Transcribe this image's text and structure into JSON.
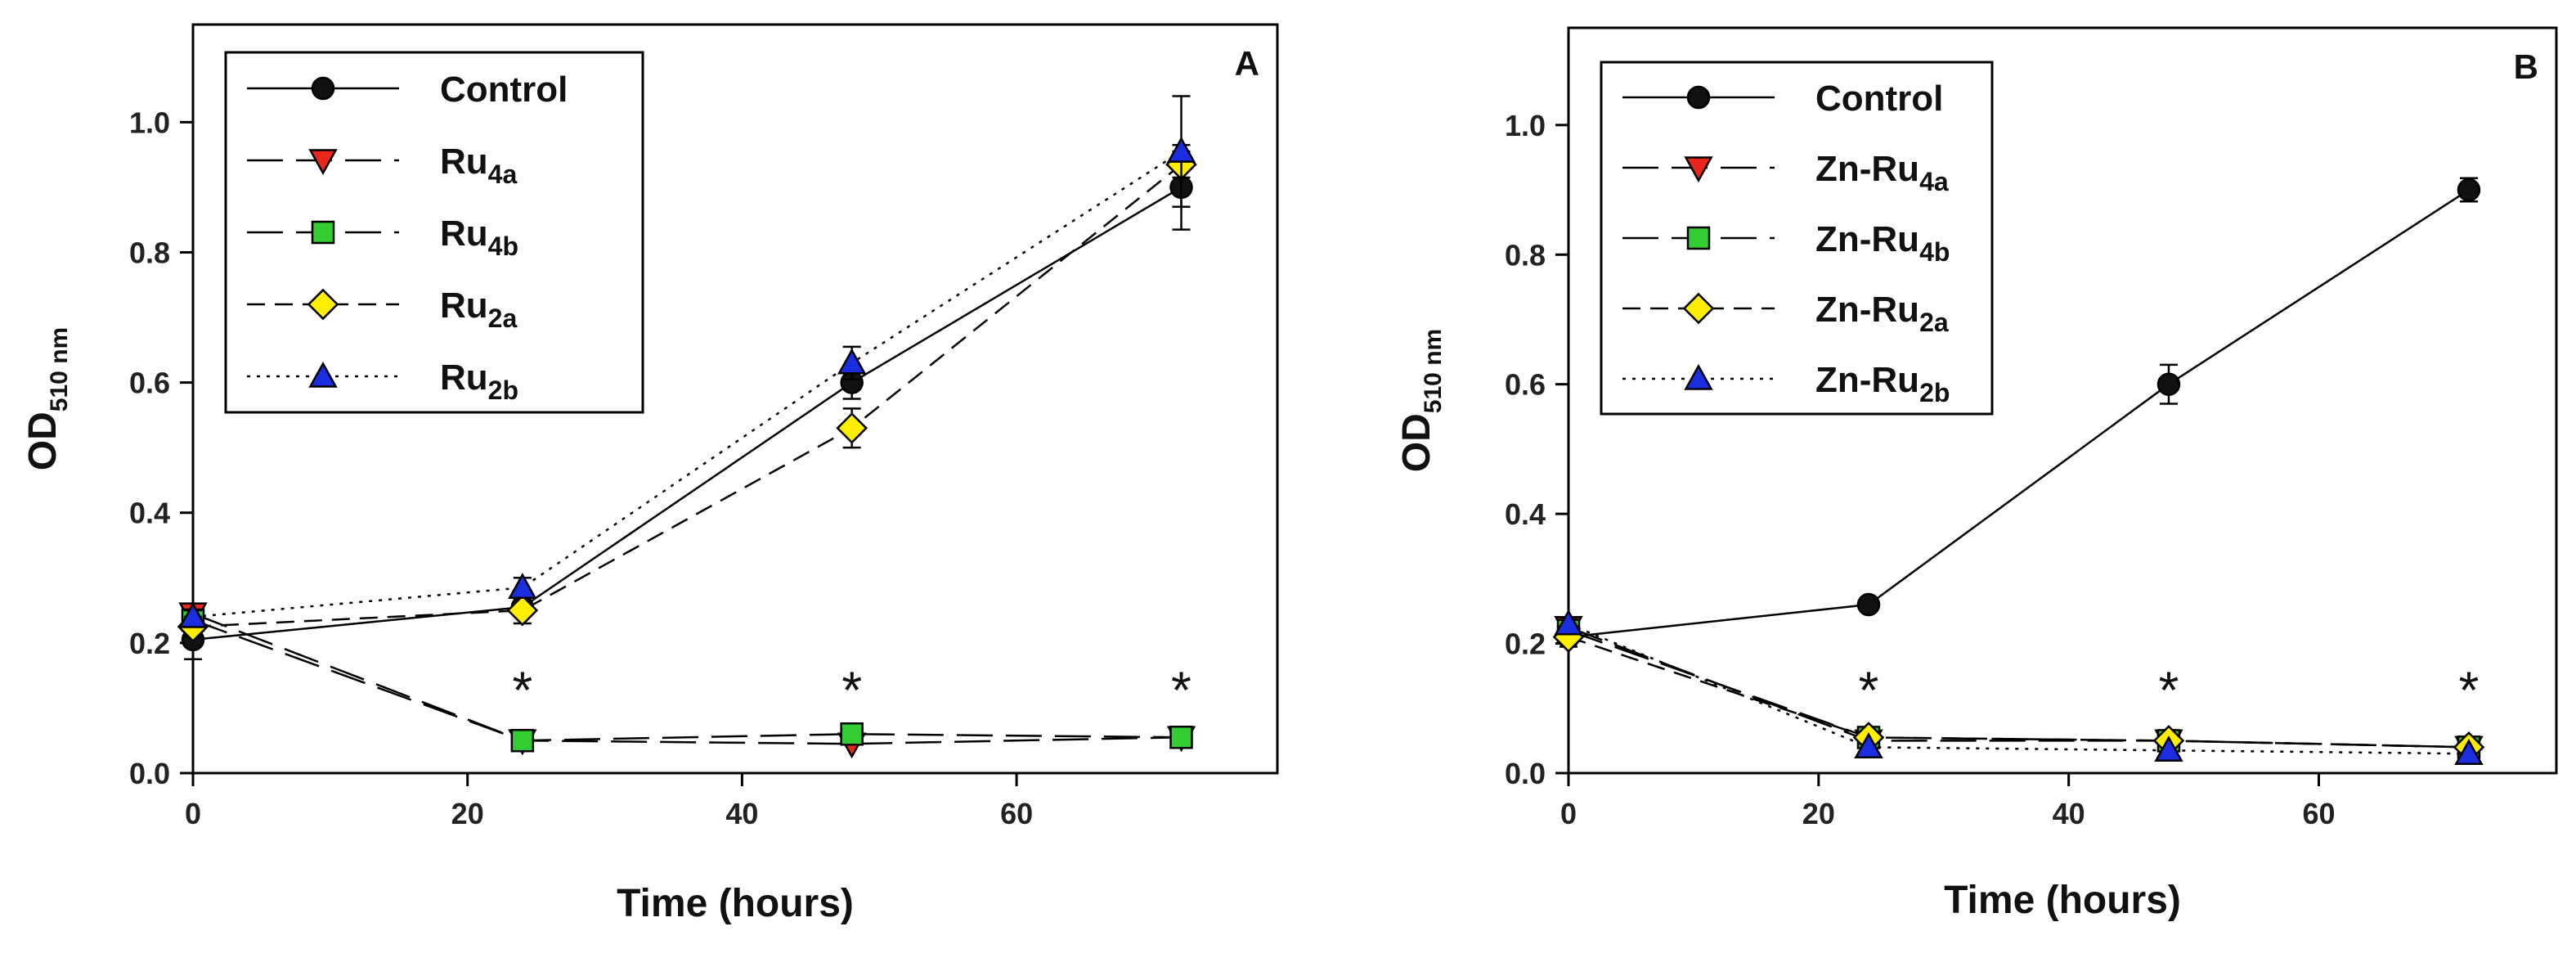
{
  "chart_data": [
    {
      "type": "line",
      "panel_label": "A",
      "xlabel": "Time (hours)",
      "ylabel": {
        "main": "OD",
        "sub": "510 nm"
      },
      "xlim": [
        0,
        79
      ],
      "ylim": [
        0,
        1.15
      ],
      "xticks": [
        0,
        20,
        40,
        60
      ],
      "yticks": [
        0.0,
        0.2,
        0.4,
        0.6,
        0.8,
        1.0
      ],
      "ytick_labels": [
        "0.0",
        "0.2",
        "0.4",
        "0.6",
        "0.8",
        "1.0"
      ],
      "legend_position": "top-left",
      "x": [
        0,
        24,
        48,
        72
      ],
      "series": [
        {
          "name": "Control",
          "base": "Control",
          "sub": "",
          "marker": "circle",
          "color": "#111111",
          "dash": "solid",
          "values": [
            0.205,
            0.255,
            0.6,
            0.9
          ],
          "errors": [
            0.03,
            0.012,
            0.025,
            0.065
          ]
        },
        {
          "name": "Ru4a",
          "base": "Ru",
          "sub": "4a",
          "marker": "triangle-down",
          "color": "#e8261c",
          "dash": "longdash",
          "values": [
            0.245,
            0.05,
            0.045,
            0.055
          ],
          "errors": [
            0.01,
            0.005,
            0.005,
            0.005
          ]
        },
        {
          "name": "Ru4b",
          "base": "Ru",
          "sub": "4b",
          "marker": "square",
          "color": "#33cc33",
          "dash": "longdash",
          "values": [
            0.235,
            0.05,
            0.06,
            0.055
          ],
          "errors": [
            0.01,
            0.005,
            0.005,
            0.005
          ]
        },
        {
          "name": "Ru2a",
          "base": "Ru",
          "sub": "2a",
          "marker": "diamond",
          "color": "#ffee00",
          "dash": "shortdash",
          "values": [
            0.225,
            0.25,
            0.53,
            0.935
          ],
          "errors": [
            0.015,
            0.02,
            0.03,
            0.02
          ]
        },
        {
          "name": "Ru2b",
          "base": "Ru",
          "sub": "2b",
          "marker": "triangle-up",
          "color": "#1a2ee0",
          "dash": "dotted",
          "values": [
            0.24,
            0.285,
            0.63,
            0.955
          ],
          "errors": [
            0.01,
            0.015,
            0.025,
            0.085
          ]
        }
      ],
      "significance": [
        {
          "x": 24,
          "label": "*"
        },
        {
          "x": 48,
          "label": "*"
        },
        {
          "x": 72,
          "label": "*"
        }
      ]
    },
    {
      "type": "line",
      "panel_label": "B",
      "xlabel": "Time (hours)",
      "ylabel": {
        "main": "OD",
        "sub": "510 nm"
      },
      "xlim": [
        0,
        79
      ],
      "ylim": [
        0,
        1.15
      ],
      "xticks": [
        0,
        20,
        40,
        60
      ],
      "yticks": [
        0.0,
        0.2,
        0.4,
        0.6,
        0.8,
        1.0
      ],
      "ytick_labels": [
        "0.0",
        "0.2",
        "0.4",
        "0.6",
        "0.8",
        "1.0"
      ],
      "legend_position": "top-left",
      "x": [
        0,
        24,
        48,
        72
      ],
      "series": [
        {
          "name": "Control",
          "base": "Control",
          "sub": "",
          "marker": "circle",
          "color": "#111111",
          "dash": "solid",
          "values": [
            0.21,
            0.26,
            0.6,
            0.9
          ],
          "errors": [
            0.015,
            0.01,
            0.03,
            0.018
          ]
        },
        {
          "name": "Zn-Ru4a",
          "base": "Zn-Ru",
          "sub": "4a",
          "marker": "triangle-down",
          "color": "#e8261c",
          "dash": "longdash",
          "values": [
            0.225,
            0.05,
            0.05,
            0.04
          ],
          "errors": [
            0.01,
            0.005,
            0.005,
            0.005
          ]
        },
        {
          "name": "Zn-Ru4b",
          "base": "Zn-Ru",
          "sub": "4b",
          "marker": "square",
          "color": "#33cc33",
          "dash": "longdash",
          "values": [
            0.22,
            0.055,
            0.05,
            0.04
          ],
          "errors": [
            0.01,
            0.005,
            0.005,
            0.005
          ]
        },
        {
          "name": "Zn-Ru2a",
          "base": "Zn-Ru",
          "sub": "2a",
          "marker": "diamond",
          "color": "#ffee00",
          "dash": "shortdash",
          "values": [
            0.21,
            0.055,
            0.05,
            0.04
          ],
          "errors": [
            0.01,
            0.005,
            0.005,
            0.005
          ]
        },
        {
          "name": "Zn-Ru2b",
          "base": "Zn-Ru",
          "sub": "2b",
          "marker": "triangle-up",
          "color": "#1a2ee0",
          "dash": "dotted",
          "values": [
            0.23,
            0.04,
            0.035,
            0.03
          ],
          "errors": [
            0.01,
            0.005,
            0.005,
            0.005
          ]
        }
      ],
      "significance": [
        {
          "x": 24,
          "label": "*"
        },
        {
          "x": 48,
          "label": "*"
        },
        {
          "x": 72,
          "label": "*"
        }
      ]
    }
  ]
}
